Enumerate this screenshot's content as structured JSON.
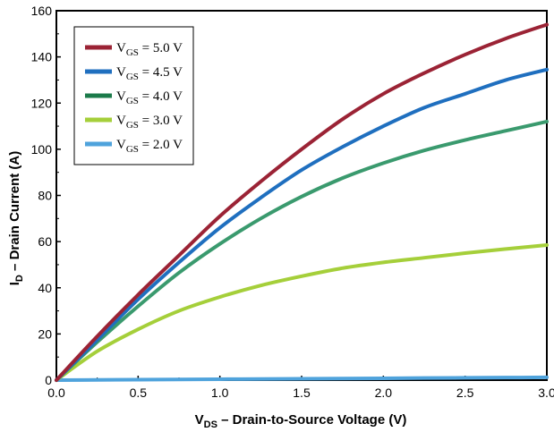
{
  "chart_data": {
    "type": "line",
    "title": "",
    "xlabel": {
      "main": "V",
      "sub": "DS",
      "rest": " – Drain-to-Source Voltage (V)"
    },
    "ylabel": {
      "main": "I",
      "sub": "D",
      "rest": " – Drain Current (A)"
    },
    "xlim": [
      0,
      3
    ],
    "ylim": [
      0,
      160
    ],
    "x_ticks": [
      "0.0",
      "0.5",
      "1.0",
      "1.5",
      "2.0",
      "2.5",
      "3.0"
    ],
    "y_ticks": [
      "0",
      "20",
      "40",
      "60",
      "80",
      "100",
      "120",
      "140",
      "160"
    ],
    "grid": false,
    "legend_position": "top-left",
    "x": [
      0,
      0.25,
      0.5,
      0.75,
      1.0,
      1.25,
      1.5,
      1.75,
      2.0,
      2.25,
      2.5,
      2.75,
      3.0
    ],
    "series": [
      {
        "name": {
          "main": "V",
          "sub": "GS",
          "rest": " = 5.0 V"
        },
        "color": "#9b2335",
        "values": [
          0,
          19,
          37,
          54,
          71,
          86,
          100,
          113,
          124,
          133,
          141,
          148,
          154
        ]
      },
      {
        "name": {
          "main": "V",
          "sub": "GS",
          "rest": " = 4.5 V"
        },
        "color": "#1f6fbf",
        "values": [
          0,
          17.5,
          35,
          51,
          66,
          79,
          91,
          101,
          110,
          118,
          124,
          130,
          134.5
        ]
      },
      {
        "name": {
          "main": "V",
          "sub": "GS",
          "rest": " = 4.0 V"
        },
        "color": "#3a9a6e",
        "values": [
          0,
          16.5,
          32,
          46.5,
          59,
          70,
          79.5,
          87.5,
          94,
          99.5,
          104,
          108,
          112
        ]
      },
      {
        "name": {
          "main": "V",
          "sub": "GS",
          "rest": " = 3.0 V"
        },
        "color": "#a5cf3a",
        "values": [
          0,
          12.5,
          22,
          30,
          36,
          41,
          45,
          48.5,
          51,
          53,
          55,
          56.8,
          58.5
        ]
      },
      {
        "name": {
          "main": "V",
          "sub": "GS",
          "rest": " = 2.0 V"
        },
        "color": "#4fa3dc",
        "values": [
          0,
          0.1,
          0.2,
          0.3,
          0.4,
          0.5,
          0.6,
          0.7,
          0.8,
          0.9,
          1.0,
          1.1,
          1.2
        ]
      }
    ],
    "legend_swatch_colors": [
      "#9b2335",
      "#1f6fbf",
      "#1b7a4a",
      "#a5cf3a",
      "#4fa3dc"
    ]
  }
}
